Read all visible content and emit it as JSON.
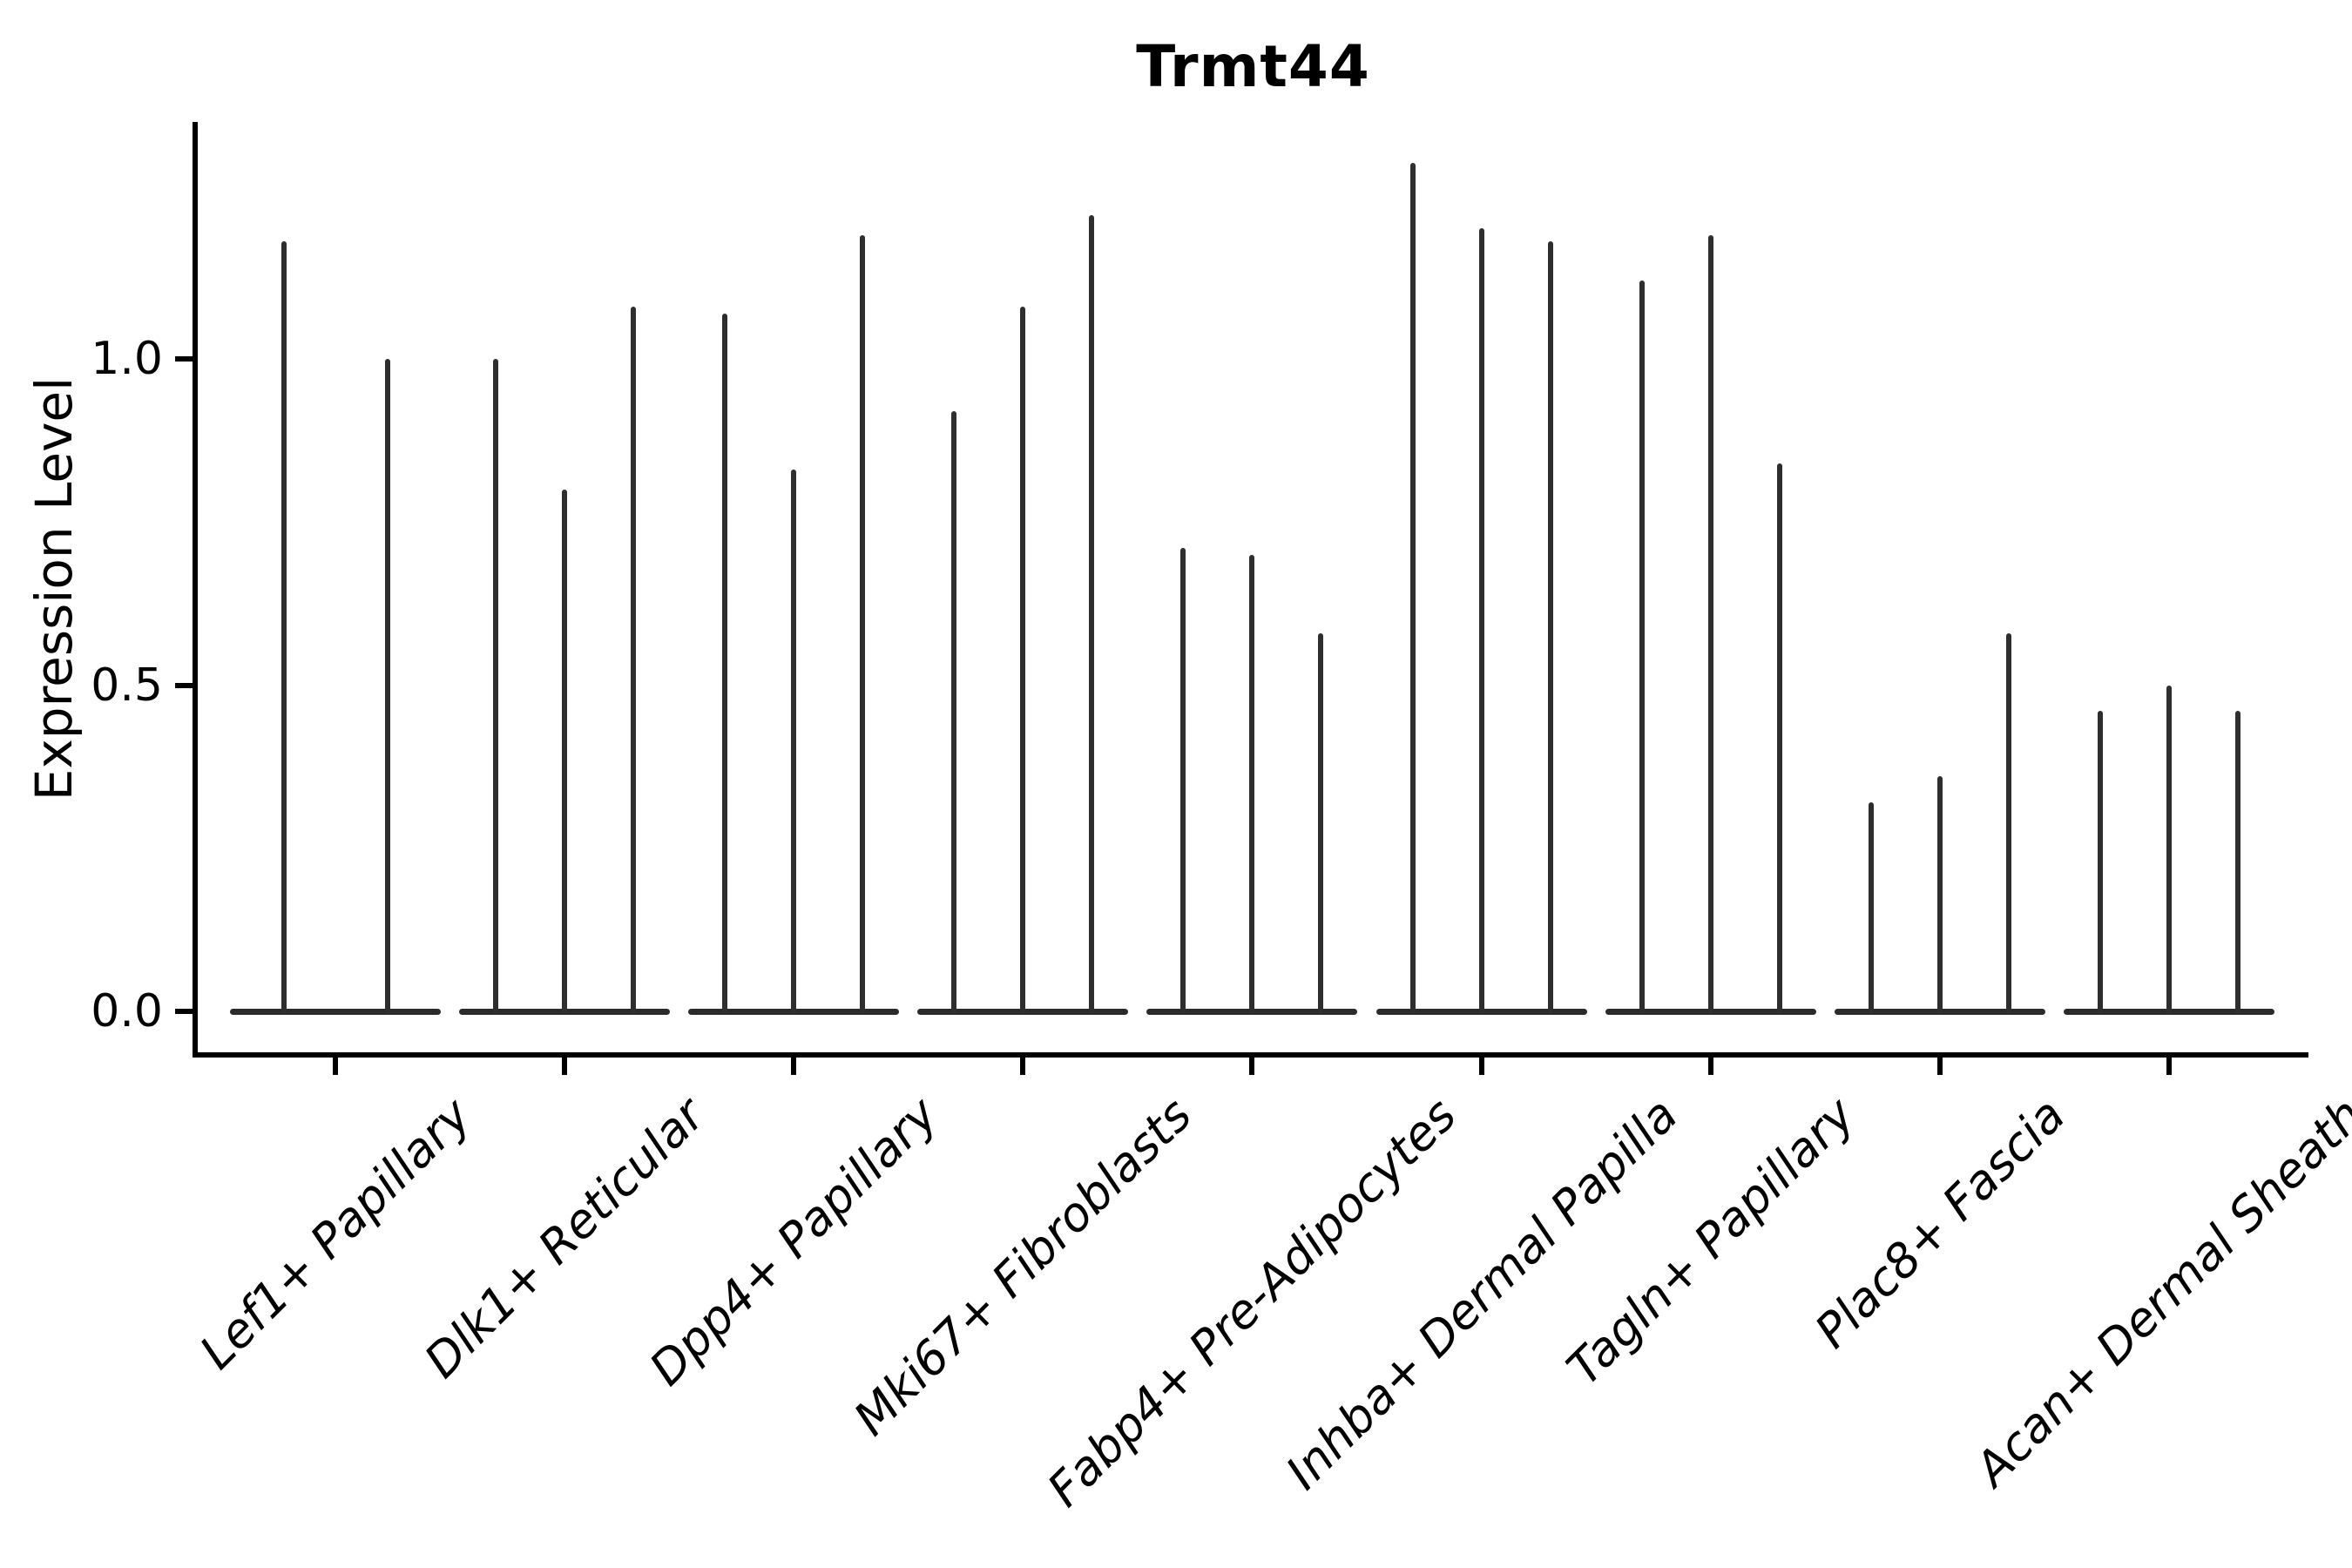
{
  "chart_data": {
    "type": "violin",
    "title": "Trmt44",
    "xlabel": "",
    "ylabel": "Expression Level",
    "yticks": [
      "0.0",
      "0.5",
      "1.0"
    ],
    "ytick_values": [
      0.0,
      0.5,
      1.0
    ],
    "ylim": [
      -0.06,
      1.36
    ],
    "grid": false,
    "legend": "none",
    "note": "Grouped violin plot; violins collapse to a flat base at 0 with a thin spike up to the max expression value per violin",
    "categories": [
      "Lef1+ Papillary",
      "Dlk1+ Reticular",
      "Dpp4+ Papillary",
      "Mki67+ Fibroblasts",
      "Fabp4+ Pre-Adipocytes",
      "Inhba+ Dermal Papilla",
      "Tagln+ Papillary",
      "Plac8+ Fascia",
      "Acan+ Dermal Sheath"
    ],
    "groups": [
      {
        "label": "Lef1+ Papillary",
        "violin_max_values": [
          1.18,
          1.0
        ]
      },
      {
        "label": "Dlk1+ Reticular",
        "violin_max_values": [
          1.0,
          0.8,
          1.08
        ]
      },
      {
        "label": "Dpp4+ Papillary",
        "violin_max_values": [
          1.07,
          0.83,
          1.19
        ]
      },
      {
        "label": "Mki67+ Fibroblasts",
        "violin_max_values": [
          0.92,
          1.08,
          1.22
        ]
      },
      {
        "label": "Fabp4+ Pre-Adipocytes",
        "violin_max_values": [
          0.71,
          0.7,
          0.58
        ]
      },
      {
        "label": "Inhba+ Dermal Papilla",
        "violin_max_values": [
          1.3,
          1.2,
          1.18
        ]
      },
      {
        "label": "Tagln+ Papillary",
        "violin_max_values": [
          1.12,
          1.19,
          0.84
        ]
      },
      {
        "label": "Plac8+ Fascia",
        "violin_max_values": [
          0.32,
          0.36,
          0.58
        ]
      },
      {
        "label": "Acan+ Dermal Sheath",
        "violin_max_values": [
          0.46,
          0.5,
          0.46
        ]
      }
    ],
    "colors": {
      "violin": "#2e2e2e",
      "axis": "#000000",
      "background": "#ffffff",
      "text": "#000000"
    }
  }
}
